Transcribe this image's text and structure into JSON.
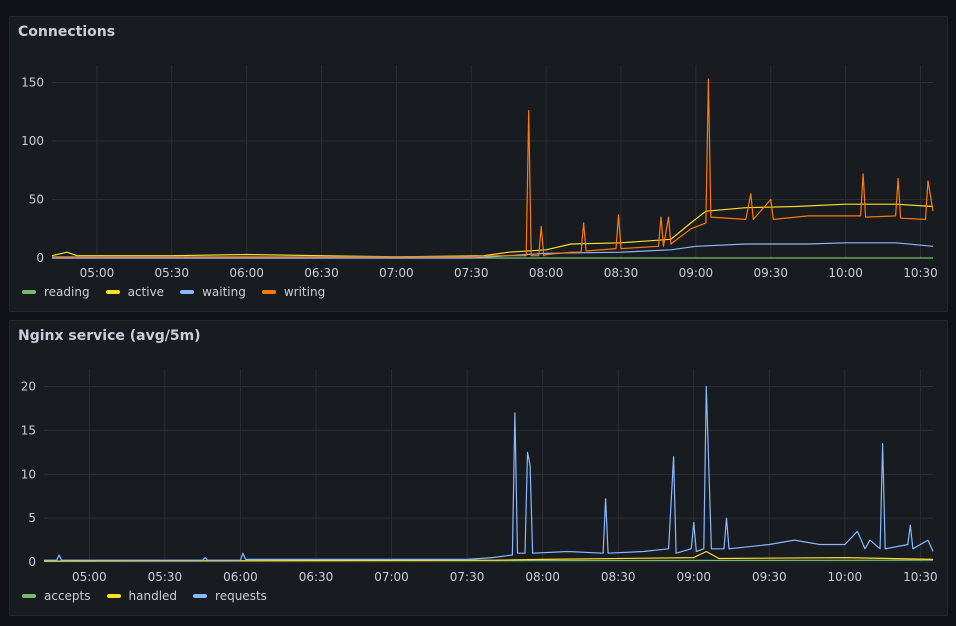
{
  "panels": [
    {
      "title": "Connections",
      "legend": [
        {
          "label": "reading",
          "color": "#73bf69"
        },
        {
          "label": "active",
          "color": "#fade2a"
        },
        {
          "label": "waiting",
          "color": "#8ab8ff"
        },
        {
          "label": "writing",
          "color": "#ff780a"
        }
      ]
    },
    {
      "title": "Nginx service (avg/5m)",
      "legend": [
        {
          "label": "accepts",
          "color": "#73bf69"
        },
        {
          "label": "handled",
          "color": "#fade2a"
        },
        {
          "label": "requests",
          "color": "#8ab8ff"
        }
      ]
    }
  ],
  "chart_data": [
    {
      "type": "line",
      "title": "Connections",
      "x_unit": "time (HH:MM)",
      "xlim": [
        "04:42",
        "10:35"
      ],
      "ylim": [
        0,
        165
      ],
      "yticks": [
        0,
        50,
        100,
        150
      ],
      "xticks": [
        "05:00",
        "05:30",
        "06:00",
        "06:30",
        "07:00",
        "07:30",
        "08:00",
        "08:30",
        "09:00",
        "09:30",
        "10:00",
        "10:30"
      ],
      "grid": true,
      "legend_position": "bottom-left",
      "series": [
        {
          "name": "reading",
          "color": "#73bf69",
          "points": [
            [
              "04:42",
              0
            ],
            [
              "10:35",
              0
            ]
          ]
        },
        {
          "name": "active",
          "color": "#fade2a",
          "points": [
            [
              "04:42",
              2
            ],
            [
              "04:48",
              5
            ],
            [
              "04:52",
              2
            ],
            [
              "05:30",
              2
            ],
            [
              "06:00",
              3
            ],
            [
              "06:30",
              2
            ],
            [
              "07:00",
              1
            ],
            [
              "07:35",
              2
            ],
            [
              "07:45",
              5
            ],
            [
              "08:00",
              7
            ],
            [
              "08:10",
              12
            ],
            [
              "08:30",
              13
            ],
            [
              "08:50",
              16
            ],
            [
              "08:58",
              30
            ],
            [
              "09:04",
              40
            ],
            [
              "09:20",
              43
            ],
            [
              "09:40",
              44
            ],
            [
              "10:00",
              46
            ],
            [
              "10:20",
              46
            ],
            [
              "10:35",
              44
            ]
          ]
        },
        {
          "name": "waiting",
          "color": "#8ab8ff",
          "points": [
            [
              "04:42",
              0
            ],
            [
              "07:30",
              0
            ],
            [
              "07:45",
              2
            ],
            [
              "08:00",
              4
            ],
            [
              "08:30",
              5
            ],
            [
              "08:50",
              7
            ],
            [
              "09:00",
              10
            ],
            [
              "09:20",
              12
            ],
            [
              "09:30",
              12
            ],
            [
              "09:45",
              12
            ],
            [
              "10:00",
              13
            ],
            [
              "10:20",
              13
            ],
            [
              "10:35",
              10
            ]
          ]
        },
        {
          "name": "writing",
          "color": "#ff780a",
          "points": [
            [
              "04:42",
              1
            ],
            [
              "07:30",
              1
            ],
            [
              "07:40",
              2
            ],
            [
              "07:52",
              2
            ],
            [
              "07:53",
              126
            ],
            [
              "07:54",
              2
            ],
            [
              "07:57",
              2
            ],
            [
              "07:58",
              27
            ],
            [
              "07:59",
              2
            ],
            [
              "08:00",
              3
            ],
            [
              "08:10",
              5
            ],
            [
              "08:14",
              5
            ],
            [
              "08:15",
              30
            ],
            [
              "08:16",
              6
            ],
            [
              "08:28",
              8
            ],
            [
              "08:29",
              37
            ],
            [
              "08:30",
              8
            ],
            [
              "08:45",
              10
            ],
            [
              "08:46",
              35
            ],
            [
              "08:47",
              10
            ],
            [
              "08:49",
              35
            ],
            [
              "08:50",
              12
            ],
            [
              "08:58",
              25
            ],
            [
              "09:04",
              30
            ],
            [
              "09:05",
              153
            ],
            [
              "09:06",
              35
            ],
            [
              "09:20",
              33
            ],
            [
              "09:22",
              55
            ],
            [
              "09:23",
              33
            ],
            [
              "09:30",
              50
            ],
            [
              "09:31",
              33
            ],
            [
              "09:45",
              36
            ],
            [
              "10:06",
              36
            ],
            [
              "10:07",
              72
            ],
            [
              "10:08",
              35
            ],
            [
              "10:20",
              36
            ],
            [
              "10:21",
              68
            ],
            [
              "10:22",
              34
            ],
            [
              "10:32",
              33
            ],
            [
              "10:33",
              66
            ],
            [
              "10:35",
              40
            ]
          ]
        }
      ]
    },
    {
      "type": "line",
      "title": "Nginx service (avg/5m)",
      "x_unit": "time (HH:MM)",
      "xlim": [
        "04:42",
        "10:35"
      ],
      "ylim": [
        0,
        22
      ],
      "yticks": [
        0,
        5,
        10,
        15,
        20
      ],
      "xticks": [
        "05:00",
        "05:30",
        "06:00",
        "06:30",
        "07:00",
        "07:30",
        "08:00",
        "08:30",
        "09:00",
        "09:30",
        "10:00",
        "10:30"
      ],
      "grid": true,
      "legend_position": "bottom-left",
      "series": [
        {
          "name": "accepts",
          "color": "#73bf69",
          "points": [
            [
              "04:42",
              0.1
            ],
            [
              "10:35",
              0.2
            ]
          ]
        },
        {
          "name": "handled",
          "color": "#fade2a",
          "points": [
            [
              "04:42",
              0.1
            ],
            [
              "07:40",
              0.2
            ],
            [
              "08:00",
              0.3
            ],
            [
              "09:00",
              0.5
            ],
            [
              "09:05",
              1.2
            ],
            [
              "09:10",
              0.4
            ],
            [
              "10:00",
              0.5
            ],
            [
              "10:35",
              0.3
            ]
          ]
        },
        {
          "name": "requests",
          "color": "#8ab8ff",
          "points": [
            [
              "04:42",
              0.2
            ],
            [
              "04:47",
              0.2
            ],
            [
              "04:48",
              0.8
            ],
            [
              "04:49",
              0.2
            ],
            [
              "05:45",
              0.2
            ],
            [
              "05:46",
              0.5
            ],
            [
              "05:47",
              0.2
            ],
            [
              "06:00",
              0.2
            ],
            [
              "06:01",
              1.0
            ],
            [
              "06:02",
              0.3
            ],
            [
              "07:30",
              0.3
            ],
            [
              "07:40",
              0.5
            ],
            [
              "07:48",
              0.8
            ],
            [
              "07:49",
              17
            ],
            [
              "07:50",
              1.0
            ],
            [
              "07:53",
              1.0
            ],
            [
              "07:54",
              12.5
            ],
            [
              "07:55",
              11
            ],
            [
              "07:56",
              1.0
            ],
            [
              "08:10",
              1.2
            ],
            [
              "08:24",
              1.0
            ],
            [
              "08:25",
              7.2
            ],
            [
              "08:26",
              1.0
            ],
            [
              "08:40",
              1.2
            ],
            [
              "08:50",
              1.5
            ],
            [
              "08:52",
              12
            ],
            [
              "08:53",
              1.0
            ],
            [
              "08:59",
              1.5
            ],
            [
              "09:00",
              4.5
            ],
            [
              "09:01",
              1.2
            ],
            [
              "09:04",
              1.5
            ],
            [
              "09:05",
              20
            ],
            [
              "09:06",
              10.5
            ],
            [
              "09:07",
              1.5
            ],
            [
              "09:12",
              1.5
            ],
            [
              "09:13",
              5
            ],
            [
              "09:14",
              1.5
            ],
            [
              "09:30",
              2
            ],
            [
              "09:40",
              2.5
            ],
            [
              "09:50",
              2
            ],
            [
              "10:00",
              2
            ],
            [
              "10:05",
              3.5
            ],
            [
              "10:08",
              1.5
            ],
            [
              "10:10",
              2.5
            ],
            [
              "10:14",
              1.5
            ],
            [
              "10:15",
              13.5
            ],
            [
              "10:16",
              1.5
            ],
            [
              "10:25",
              2
            ],
            [
              "10:26",
              4.2
            ],
            [
              "10:27",
              1.5
            ],
            [
              "10:33",
              2.5
            ],
            [
              "10:35",
              1.2
            ]
          ]
        }
      ]
    }
  ]
}
